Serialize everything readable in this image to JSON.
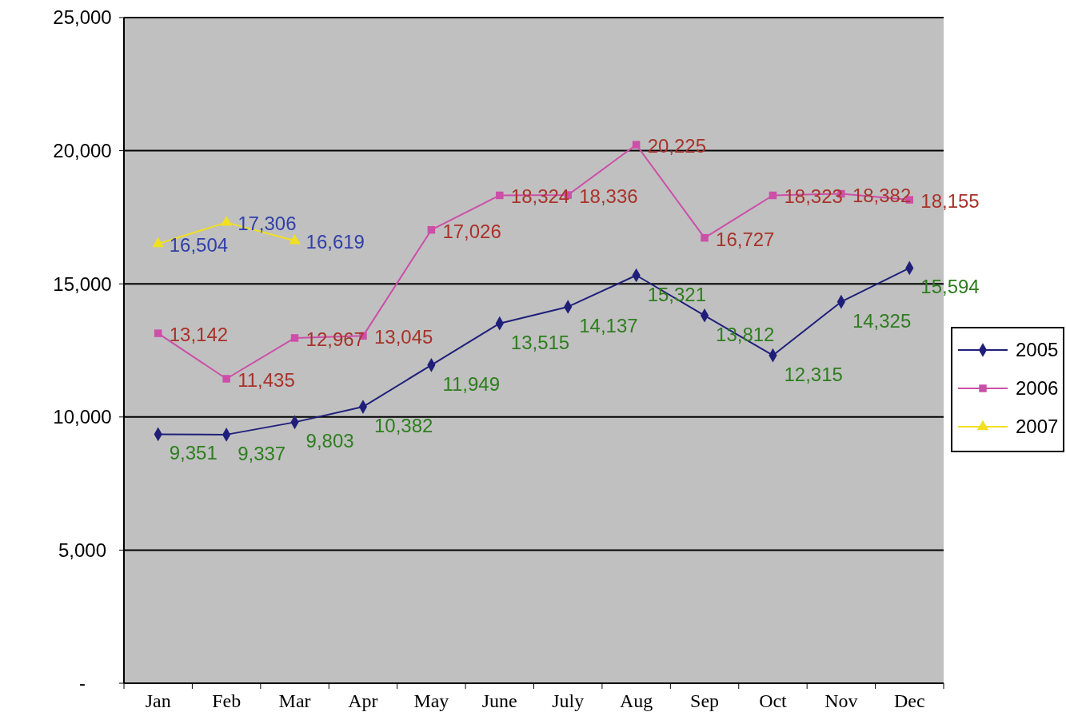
{
  "chart_data": {
    "type": "line",
    "categories": [
      "Jan",
      "Feb",
      "Mar",
      "Apr",
      "May",
      "June",
      "July",
      "Aug",
      "Sep",
      "Oct",
      "Nov",
      "Dec"
    ],
    "series": [
      {
        "name": "2005",
        "color": "#1f1f7a",
        "marker": "diamond",
        "values": [
          9351,
          9337,
          9803,
          10382,
          11949,
          13515,
          14137,
          15321,
          13812,
          12315,
          14325,
          15594
        ],
        "value_labels": [
          "9,351",
          "9,337",
          "9,803",
          "10,382",
          "11,949",
          "13,515",
          "14,137",
          "15,321",
          "13,812",
          "12,315",
          "14,325",
          "15,594"
        ]
      },
      {
        "name": "2006",
        "color": "#cc4fa8",
        "marker": "square",
        "values": [
          13142,
          11435,
          12967,
          13045,
          17026,
          18324,
          18336,
          20225,
          16727,
          18323,
          18382,
          18155
        ],
        "value_labels": [
          "13,142",
          "11,435",
          "12,967",
          "13,045",
          "17,026",
          "18,324",
          "18,336",
          "20,225",
          "16,727",
          "18,323",
          "18,382",
          "18,155"
        ]
      },
      {
        "name": "2007",
        "color": "#f0e020",
        "marker": "triangle",
        "values": [
          16504,
          17306,
          16619,
          null,
          null,
          null,
          null,
          null,
          null,
          null,
          null,
          null
        ],
        "value_labels": [
          "16,504",
          "17,306",
          "16,619",
          null,
          null,
          null,
          null,
          null,
          null,
          null,
          null,
          null
        ]
      }
    ],
    "ylim": [
      0,
      25000
    ],
    "yticks": [
      {
        "value": 0,
        "label": "-"
      },
      {
        "value": 5000,
        "label": "5,000"
      },
      {
        "value": 10000,
        "label": "10,000"
      },
      {
        "value": 15000,
        "label": "15,000"
      },
      {
        "value": 20000,
        "label": "20,000"
      },
      {
        "value": 25000,
        "label": "25,000"
      }
    ],
    "grid": "y",
    "legend": "right"
  }
}
